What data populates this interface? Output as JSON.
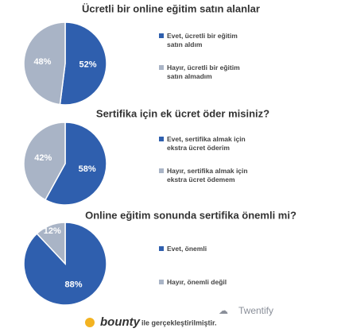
{
  "chart_data": [
    {
      "type": "pie",
      "title": "Ücretli bir online eğitim satın alanlar",
      "categories": [
        "Evet, ücretli bir eğitim satın aldım",
        "Hayır, ücretli bir eğitim satın almadım"
      ],
      "values": [
        52,
        48
      ],
      "value_labels": [
        "52%",
        "48%"
      ],
      "colors": [
        "#2f5fae",
        "#a9b4c6"
      ]
    },
    {
      "type": "pie",
      "title": "Sertifika için ek ücret öder misiniz?",
      "categories": [
        "Evet, sertifika almak için ekstra ücret öderim",
        "Hayır, sertifika almak için ekstra ücret ödemem"
      ],
      "values": [
        58,
        42
      ],
      "value_labels": [
        "58%",
        "42%"
      ],
      "colors": [
        "#2f5fae",
        "#a9b4c6"
      ]
    },
    {
      "type": "pie",
      "title": "Online eğitim sonunda sertifika önemli mi?",
      "categories": [
        "Evet, önemli",
        "Hayır, önemli değil"
      ],
      "values": [
        88,
        12
      ],
      "value_labels": [
        "88%",
        "12%"
      ],
      "colors": [
        "#2f5fae",
        "#a9b4c6"
      ]
    }
  ],
  "footer": {
    "brand": "Twentify",
    "partner": "bounty",
    "note": "ile gerçekleştirilmiştir."
  }
}
